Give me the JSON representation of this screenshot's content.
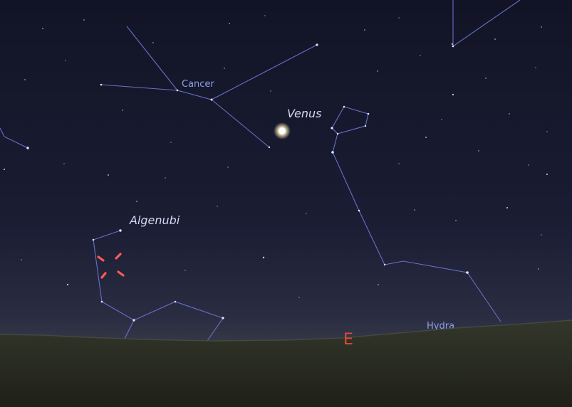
{
  "constellations": {
    "cancer": "Cancer",
    "hydra": "Hydra"
  },
  "objects": {
    "venus": "Venus",
    "algenubi": "Algenubi"
  },
  "horizon": {
    "cardinal": "E"
  },
  "colors": {
    "constellation_line": "#6670c6",
    "constellation_label": "#8fa0ea",
    "object_label": "#d3d8f0",
    "cardinal_point": "#e2493a",
    "selection_marker": "#ff5a5a",
    "ground": "#2b2d22"
  }
}
